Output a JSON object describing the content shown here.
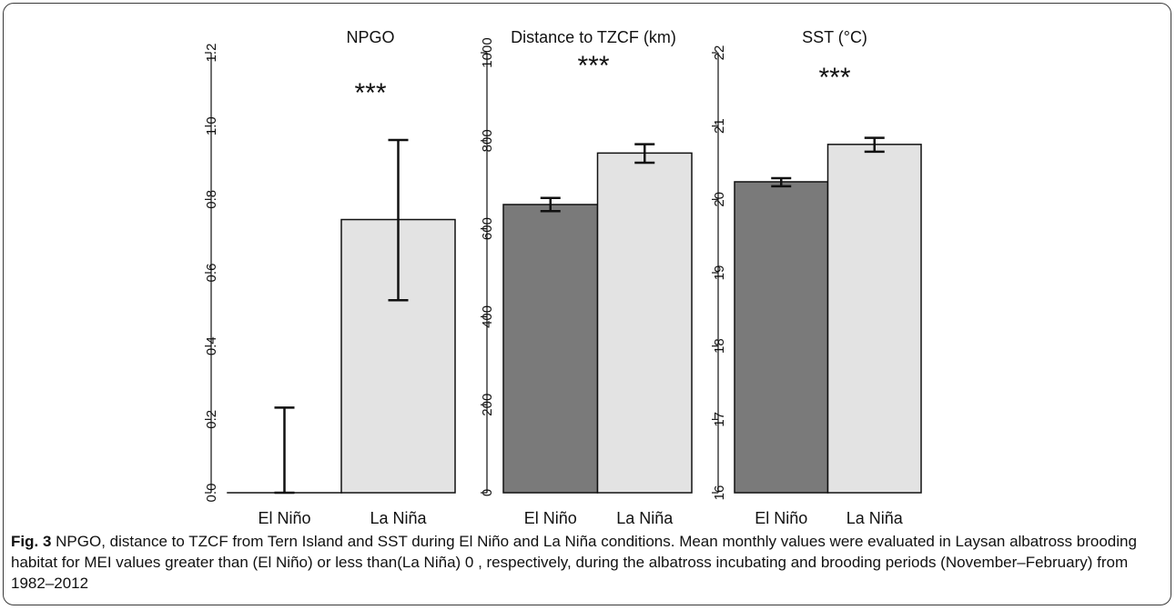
{
  "chart_data": [
    {
      "type": "bar",
      "title": "NPGO",
      "categories": [
        "El Niño",
        "La Niña"
      ],
      "values": [
        0.0,
        0.745
      ],
      "error_low": [
        0.0,
        0.525
      ],
      "error_high": [
        0.232,
        0.962
      ],
      "ylim": [
        0,
        1.2
      ],
      "yticks": [
        "0.0",
        "0.2",
        "0.4",
        "0.6",
        "0.8",
        "1.0",
        "1.2"
      ],
      "annotation": "***",
      "colors": [
        "#7a7a7a",
        "#e3e3e3"
      ]
    },
    {
      "type": "bar",
      "title": "Distance to TZCF (km)",
      "categories": [
        "El Niño",
        "La Niña"
      ],
      "values": [
        655,
        772
      ],
      "error_low": [
        640,
        750
      ],
      "error_high": [
        670,
        792
      ],
      "ylim": [
        0,
        1000
      ],
      "yticks": [
        "0",
        "200",
        "400",
        "600",
        "800",
        "1000"
      ],
      "annotation": "***",
      "colors": [
        "#7a7a7a",
        "#e3e3e3"
      ]
    },
    {
      "type": "bar",
      "title": "SST (°C)",
      "categories": [
        "El Niño",
        "La Niña"
      ],
      "values": [
        20.24,
        20.75
      ],
      "error_low": [
        20.18,
        20.65
      ],
      "error_high": [
        20.29,
        20.84
      ],
      "ylim": [
        16,
        22
      ],
      "yticks": [
        "16",
        "17",
        "18",
        "19",
        "20",
        "21",
        "22"
      ],
      "annotation": "***",
      "colors": [
        "#7a7a7a",
        "#e3e3e3"
      ]
    }
  ],
  "caption": {
    "label": "Fig. 3",
    "text": " NPGO, distance to TZCF from Tern Island and SST during El Niño and La Niña conditions. Mean monthly values were evaluated in Laysan albatross brooding habitat for MEI values greater than (El Niño) or less than(La Niña) 0 , respectively, during the albatross incubating and brooding periods (November–February) from 1982–2012"
  }
}
